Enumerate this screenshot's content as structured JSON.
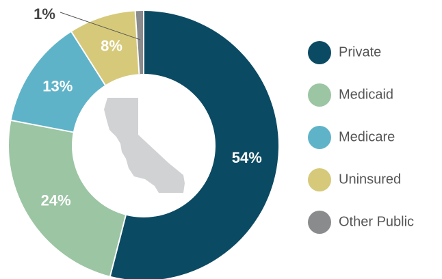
{
  "chart_data": {
    "type": "donut",
    "categories": [
      "Private",
      "Medicaid",
      "Medicare",
      "Uninsured",
      "Other Public"
    ],
    "values": [
      54,
      24,
      13,
      8,
      1
    ],
    "value_labels": [
      "54%",
      "24%",
      "13%",
      "8%",
      "1%"
    ],
    "colors": [
      "#0b4a63",
      "#9cc5a3",
      "#5fb3c8",
      "#d6c97a",
      "#898b8d"
    ],
    "legend": "right"
  }
}
